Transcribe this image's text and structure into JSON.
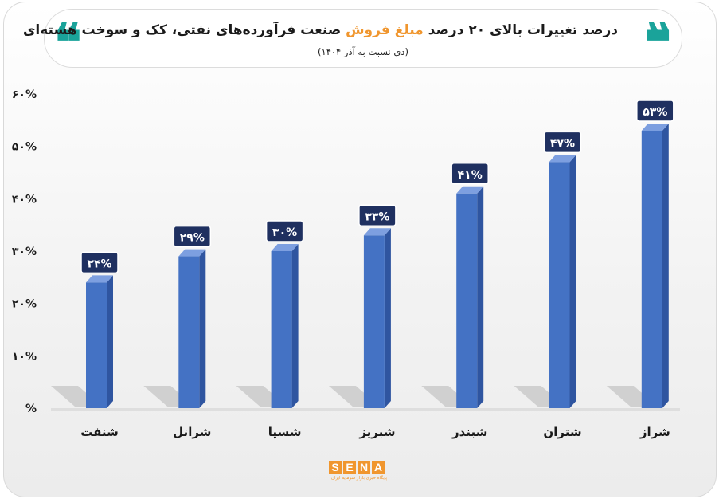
{
  "header": {
    "quote_open": "❝",
    "quote_close": "❝",
    "title_before": "درصد تغییرات بالای ۲۰ درصد ",
    "title_highlight": "مبلغ فروش",
    "title_after": " صنعت فرآورده‌های نفتی، کک و سوخت هسته‌ای",
    "subtitle": "(دی نسبت به آذر ۱۴۰۴)"
  },
  "logo": {
    "letters": [
      "S",
      "E",
      "N",
      "A"
    ],
    "tagline": "پایگاه خبری بازار سرمایه ایران"
  },
  "colors": {
    "bar_front": "#4472c4",
    "bar_side": "#2f55a0",
    "bar_top": "#7d9fe0",
    "label_bg": "#1f3060",
    "label_border": "#ffffff",
    "accent": "#f0962e",
    "quote": "#1aa39a"
  },
  "chart_data": {
    "type": "bar",
    "categories": [
      "شنفت",
      "شرانل",
      "شسپا",
      "شبریز",
      "شبندر",
      "شتران",
      "شراز"
    ],
    "values": [
      24,
      29,
      30,
      33,
      41,
      47,
      53
    ],
    "data_labels": [
      "۲۴%",
      "۲۹%",
      "۳۰%",
      "۳۳%",
      "۴۱%",
      "۴۷%",
      "۵۳%"
    ],
    "y_ticks": [
      0,
      10,
      20,
      30,
      40,
      50,
      60
    ],
    "y_tick_labels": [
      "%",
      "۱۰%",
      "۲۰%",
      "۳۰%",
      "۴۰%",
      "۵۰%",
      "۶۰%"
    ],
    "ylim": [
      0,
      60
    ],
    "grid": false,
    "legend": "none"
  }
}
